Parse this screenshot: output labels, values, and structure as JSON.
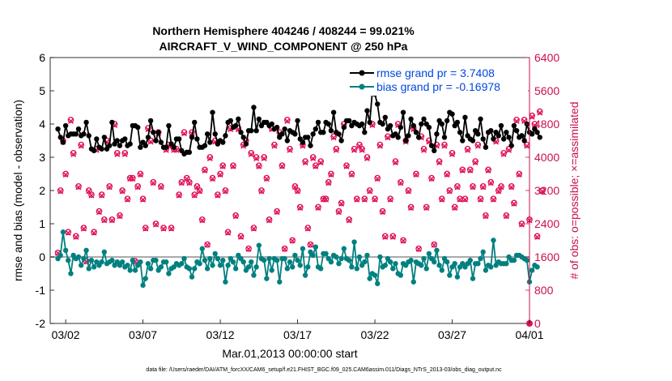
{
  "chart_data": {
    "type": "line",
    "title_line1": "Northern Hemisphere 404246 / 408244 = 99.021%",
    "title_line2": "AIRCRAFT_V_WIND_COMPONENT @ 250 hPa",
    "ylabel_left": "rmse and bias (model - observation)",
    "ylabel_right": "# of obs: o=possible; ×=assimilated",
    "xlabel": "Mar.01,2013 00:00:00 start",
    "footnote": "data file: /Users/raeder/DAI/ATM_forcXX/CAM6_setup/f.e21.FHIST_BGC.f09_025.CAM6assim.011/Diags_NTrS_2013-03/obs_diag_output.nc",
    "ylim_left": [
      -2,
      6
    ],
    "ylim_right": [
      0,
      6400
    ],
    "xlim_days": [
      0.5,
      31.5
    ],
    "left_ticks": [
      "-2",
      "-1",
      "0",
      "1",
      "2",
      "3",
      "4",
      "5",
      "6"
    ],
    "right_ticks": [
      "0",
      "800",
      "1600",
      "2400",
      "3200",
      "4000",
      "4800",
      "5600",
      "6400"
    ],
    "x_ticks": [
      {
        "day": 1.5,
        "label": "03/02"
      },
      {
        "day": 6.5,
        "label": "03/07"
      },
      {
        "day": 11.5,
        "label": "03/12"
      },
      {
        "day": 16.5,
        "label": "03/17"
      },
      {
        "day": 21.5,
        "label": "03/22"
      },
      {
        "day": 26.5,
        "label": "03/27"
      },
      {
        "day": 31.5,
        "label": "04/01"
      }
    ],
    "zero_line": 0,
    "colors": {
      "rmse": "#000000",
      "bias": "#008080",
      "obs": "#e0105a",
      "right_axis": "#c8104a",
      "legend_text": "#0047e0",
      "zero_line": "#aaaaaa"
    },
    "legend": [
      {
        "name": "rmse grand pr = 3.7408",
        "series": "rmse"
      },
      {
        "name": "bias grand pr = -0.16978",
        "series": "bias"
      }
    ],
    "points_per_day": 6,
    "series": [
      {
        "name": "rmse",
        "axis": "left",
        "values": [
          3.85,
          3.6,
          3.45,
          3.95,
          3.65,
          3.7,
          3.7,
          3.7,
          3.85,
          3.65,
          3.7,
          4.05,
          3.65,
          3.25,
          3.2,
          3.55,
          3.3,
          3.25,
          3.6,
          3.25,
          3.35,
          4.05,
          3.4,
          3.5,
          3.35,
          3.5,
          3.55,
          3.35,
          3.4,
          3.95,
          3.95,
          3.9,
          3.3,
          3.45,
          3.35,
          3.6,
          4.1,
          3.75,
          3.5,
          3.75,
          3.45,
          3.3,
          3.3,
          3.95,
          3.4,
          3.3,
          3.55,
          3.55,
          3.2,
          3.1,
          3.15,
          3.15,
          3.6,
          4.05,
          3.55,
          3.3,
          3.3,
          3.35,
          3.7,
          3.45,
          4.35,
          3.7,
          3.4,
          3.5,
          3.45,
          3.65,
          4.05,
          4.1,
          3.9,
          3.95,
          4.15,
          3.75,
          3.6,
          3.4,
          3.8,
          3.8,
          4.5,
          3.8,
          4.15,
          3.95,
          4.05,
          4.05,
          3.95,
          4.0,
          3.85,
          3.9,
          3.6,
          3.7,
          3.85,
          3.5,
          3.8,
          3.75,
          3.7,
          4.1,
          3.55,
          3.45,
          3.6,
          3.6,
          3.35,
          3.7,
          3.85,
          4.05,
          3.75,
          3.75,
          4.05,
          4.0,
          3.8,
          4.35,
          3.75,
          3.7,
          3.5,
          3.9,
          4.1,
          4.1,
          3.95,
          4.05,
          4.0,
          3.95,
          4.0,
          3.75,
          4.4,
          4.05,
          4.95,
          4.9,
          4.6,
          4.05,
          4.0,
          4.2,
          3.85,
          3.95,
          3.65,
          3.7,
          3.6,
          3.9,
          4.35,
          3.5,
          3.65,
          4.15,
          3.95,
          3.75,
          3.6,
          4.0,
          4.15,
          4.0,
          3.9,
          3.35,
          3.2,
          3.7,
          4.1,
          4.0,
          3.6,
          4.1,
          4.35,
          4.3,
          3.95,
          4.05,
          3.75,
          3.5,
          4.2,
          3.65,
          3.55,
          3.5,
          3.8,
          3.7,
          4.15,
          3.55,
          3.3,
          3.75,
          3.8,
          3.55,
          3.75,
          3.65,
          3.95,
          3.55,
          3.75,
          3.6,
          3.35,
          3.95,
          3.8,
          3.6,
          3.65,
          3.5,
          4.0,
          3.75,
          3.7,
          3.85,
          3.75,
          3.6
        ]
      },
      {
        "name": "bias",
        "axis": "left",
        "values": [
          -0.05,
          0.05,
          0.75,
          0.2,
          -0.1,
          -0.5,
          0.05,
          -0.05,
          0.0,
          -0.25,
          -0.05,
          0.2,
          -0.35,
          -0.1,
          -0.3,
          -0.15,
          -0.25,
          -0.15,
          0.15,
          -0.2,
          -0.15,
          -0.1,
          -0.25,
          -0.15,
          -0.25,
          -0.15,
          -0.3,
          -0.25,
          -0.4,
          -0.1,
          -0.4,
          -0.25,
          -0.15,
          -0.85,
          -0.65,
          -0.2,
          -0.35,
          -0.1,
          -0.1,
          -0.4,
          -0.3,
          -0.15,
          -0.15,
          -0.5,
          -0.35,
          -0.3,
          -0.2,
          -0.25,
          -0.2,
          -0.05,
          -0.3,
          -0.35,
          -0.6,
          -0.35,
          -0.15,
          -0.2,
          0.25,
          -0.1,
          -0.35,
          -0.05,
          -0.25,
          0.1,
          -0.05,
          -0.25,
          -0.1,
          -0.75,
          -0.25,
          -0.05,
          -0.15,
          -0.35,
          0.05,
          -0.05,
          -0.15,
          -0.4,
          -0.3,
          -0.15,
          -0.55,
          -0.3,
          0.35,
          -0.05,
          -0.1,
          -0.65,
          -0.05,
          -0.4,
          -0.05,
          -0.1,
          -0.75,
          -0.05,
          -0.05,
          -0.35,
          -0.15,
          -0.3,
          0.05,
          -0.1,
          -0.25,
          0.25,
          -0.55,
          -0.3,
          0.15,
          0.05,
          0.3,
          -0.3,
          -0.35,
          0.1,
          0.1,
          -0.05,
          -0.15,
          0.05,
          0.0,
          -0.2,
          -0.05,
          0.25,
          -0.05,
          -0.1,
          -0.3,
          0.45,
          -0.35,
          0.0,
          -0.25,
          -0.15,
          0.05,
          -0.65,
          -0.5,
          -0.55,
          -0.8,
          0.0,
          -0.3,
          -0.25,
          -0.05,
          -0.15,
          -0.35,
          -0.2,
          -0.5,
          -0.55,
          -0.2,
          -0.25,
          -0.15,
          -0.1,
          -0.75,
          -0.15,
          -0.2,
          -0.25,
          -0.05,
          -0.35,
          0.1,
          -0.05,
          -0.15,
          0.2,
          -0.25,
          -0.4,
          -0.05,
          -0.15,
          -0.55,
          -0.3,
          -0.2,
          -0.6,
          -0.3,
          -0.2,
          -0.3,
          -0.2,
          -0.1,
          -0.65,
          -0.2,
          -0.2,
          -0.05,
          0.15,
          -0.4,
          -0.25,
          -0.3,
          0.5,
          -0.25,
          -0.15,
          -0.2,
          -0.2,
          -0.2,
          0.0,
          -0.1,
          -0.1,
          0.05,
          0.05,
          0.0,
          -0.05,
          -0.1,
          -0.75,
          -0.4,
          -0.25,
          -0.3
        ]
      },
      {
        "name": "possible_obs",
        "axis": "right",
        "values": [
          1700,
          3200,
          4400,
          3600,
          2200,
          4900,
          4100,
          2100,
          3300,
          4300,
          2300,
          1500,
          3200,
          3100,
          2200,
          4200,
          2700,
          3100,
          2500,
          4400,
          3300,
          2500,
          4800,
          4100,
          2600,
          3200,
          4100,
          3000,
          3500,
          3500,
          1500,
          3300,
          3600,
          3000,
          2300,
          4700,
          4400,
          3400,
          2400,
          4600,
          3300,
          2300,
          4200,
          4300,
          2300,
          4200,
          4200,
          3100,
          3400,
          4600,
          3500,
          3400,
          4600,
          3100,
          3300,
          3200,
          2500,
          3700,
          1900,
          4000,
          3500,
          4400,
          3100,
          3600,
          3800,
          3200,
          2200,
          4700,
          3800,
          2600,
          4700,
          2100,
          4300,
          4400,
          1800,
          4100,
          2300,
          4000,
          3800,
          3200,
          4000,
          3500,
          2500,
          4700,
          4300,
          2700,
          4600,
          3800,
          1800,
          4900,
          4200,
          2000,
          3300,
          3200,
          2800,
          4300,
          3900,
          2300,
          1900,
          4000,
          3800,
          2800,
          3900,
          3000,
          3000,
          3400,
          3600,
          4500,
          4200,
          2700,
          2900,
          4800,
          3800,
          2500,
          3600,
          4200,
          3000,
          4300,
          4200,
          3000,
          4000,
          3200,
          4800,
          3000,
          3500,
          4300,
          2700,
          2100,
          4500,
          3000,
          2100,
          3900,
          4800,
          3400,
          2000,
          4400,
          3200,
          2800,
          4700,
          3600,
          1800,
          4500,
          4200,
          2800,
          4400,
          3500,
          1900,
          4300,
          3900,
          3000,
          4300,
          3600,
          3200,
          4100,
          2800,
          3300,
          3000,
          3700,
          3000,
          4200,
          3700,
          3300,
          3900,
          4300,
          3000,
          3300,
          2600,
          3700,
          3400,
          3000,
          4400,
          3200,
          3300,
          4100,
          2600,
          4200,
          3300,
          2900,
          4900,
          3600,
          2400,
          4900,
          4300,
          2500,
          5000,
          4800,
          2100,
          5100,
          3200
        ]
      },
      {
        "name": "assimilated_obs",
        "axis": "right",
        "values": [
          1690,
          3180,
          4370,
          3580,
          2180,
          4870,
          4070,
          2080,
          3280,
          4270,
          2280,
          1490,
          3180,
          3080,
          2180,
          4170,
          2680,
          3080,
          2480,
          4370,
          3280,
          2480,
          4770,
          4070,
          2580,
          3180,
          4070,
          2980,
          3480,
          3480,
          1490,
          3280,
          3580,
          2980,
          2280,
          4670,
          4370,
          3380,
          2380,
          4570,
          3280,
          2280,
          4170,
          4270,
          2280,
          4170,
          4170,
          3080,
          3380,
          4570,
          3480,
          3380,
          4570,
          3080,
          3280,
          3180,
          2480,
          3680,
          1890,
          3970,
          3480,
          4370,
          3080,
          3580,
          3780,
          3180,
          2180,
          4670,
          3780,
          2580,
          4670,
          2080,
          4270,
          4370,
          1790,
          4070,
          2280,
          3970,
          3780,
          3180,
          3970,
          3480,
          2480,
          4670,
          4270,
          2680,
          4570,
          3780,
          1790,
          4870,
          4170,
          1990,
          3280,
          3180,
          2780,
          4270,
          3870,
          2280,
          1890,
          3970,
          3780,
          2780,
          3870,
          2980,
          2980,
          3380,
          3580,
          4470,
          4170,
          2680,
          2880,
          4770,
          3780,
          2480,
          3580,
          4170,
          2980,
          4270,
          4170,
          2980,
          3970,
          3180,
          4770,
          2980,
          3480,
          4270,
          2680,
          2080,
          4470,
          2980,
          2080,
          3870,
          4770,
          3380,
          1990,
          4370,
          3180,
          2780,
          4670,
          3580,
          1790,
          4470,
          4170,
          2780,
          4370,
          3480,
          1890,
          4270,
          3870,
          2980,
          4270,
          3580,
          3180,
          4070,
          2780,
          3280,
          2980,
          3680,
          2980,
          4170,
          3680,
          3280,
          3870,
          4270,
          2980,
          3280,
          2580,
          3680,
          3380,
          2980,
          4370,
          3180,
          3280,
          4070,
          2580,
          4170,
          3280,
          2880,
          4870,
          3580,
          2380,
          4870,
          4270,
          2480,
          4970,
          4770,
          2080,
          5070,
          3180
        ]
      }
    ]
  }
}
